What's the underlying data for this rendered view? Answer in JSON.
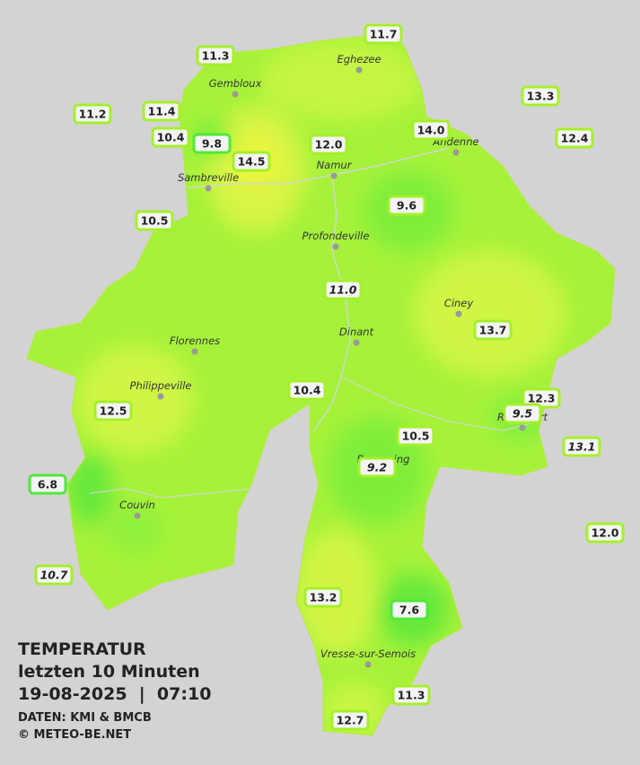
{
  "legend": {
    "title": "TEMPERATUR",
    "period": "letzten 10 Minuten",
    "timestamp": "19-08-2025  |  07:10",
    "source": "DATEN: KMI & BMCB",
    "copyright": "© METEO-BE.NET"
  },
  "towns": [
    "Eghezee",
    "Gembloux",
    "Andenne",
    "Namur",
    "Sambreville",
    "Profondeville",
    "Ciney",
    "Dinant",
    "Florennes",
    "Philippeville",
    "Beauraing",
    "Rochefort",
    "Couvin",
    "Vresse-sur-Semois"
  ],
  "stations": [
    "11.7",
    "11.3",
    "13.3",
    "11.2",
    "11.4",
    "14.0",
    "12.4",
    "10.4",
    "9.8",
    "12.0",
    "14.5",
    "9.6",
    "10.5",
    "11.0",
    "13.7",
    "10.4",
    "12.3",
    "12.5",
    "9.5",
    "10.5",
    "13.1",
    "9.2",
    "6.8",
    "12.0",
    "10.7",
    "13.2",
    "7.6",
    "11.3",
    "12.7"
  ]
}
